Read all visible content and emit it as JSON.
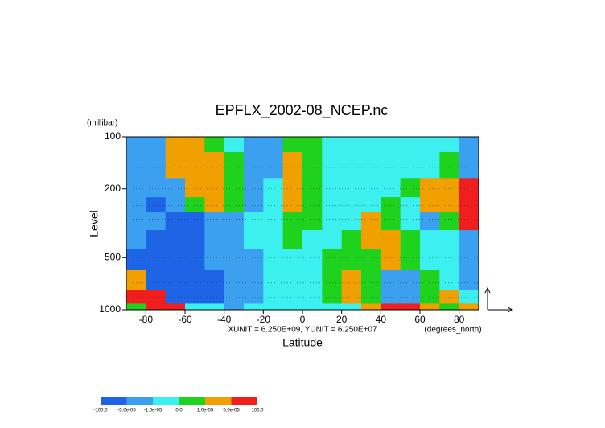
{
  "chart_data": {
    "type": "contour",
    "title": "EPFLX_2002-08_NCEP.nc",
    "y_unit_label": "(millibar)",
    "y_label": "Level",
    "x_label": "Latitude",
    "x_unit_label": "(degrees_north)",
    "annotation": "XUNIT = 6.250E+09, YUNIT = 6.250E+07",
    "xlim": [
      -90,
      90
    ],
    "xticks": [
      -80,
      -60,
      -40,
      -20,
      0,
      20,
      40,
      60,
      80
    ],
    "ylim": [
      1000,
      100
    ],
    "yticks": [
      100,
      200,
      500,
      1000
    ],
    "log_y": true,
    "x": [
      -85,
      -75,
      -65,
      -55,
      -45,
      -35,
      -25,
      -15,
      -5,
      5,
      15,
      25,
      35,
      45,
      55,
      65,
      75,
      85
    ],
    "y": [
      100,
      150,
      200,
      250,
      300,
      400,
      500,
      700,
      850,
      1000
    ],
    "z": [
      [
        -3e-05,
        -3e-05,
        3e-05,
        3e-05,
        5e-06,
        -5e-06,
        -3e-05,
        -3e-05,
        5e-06,
        5e-06,
        -5e-06,
        -5e-06,
        -5e-06,
        -5e-06,
        -5e-06,
        -5e-06,
        -5e-06,
        -3e-05
      ],
      [
        -3e-05,
        -3e-05,
        3e-05,
        3e-05,
        3e-05,
        5e-06,
        -3e-05,
        -3e-05,
        3e-05,
        5e-06,
        -5e-06,
        -5e-06,
        -5e-06,
        -5e-06,
        -5e-06,
        -5e-06,
        5e-06,
        -3e-05
      ],
      [
        -3e-05,
        -3e-05,
        -3e-05,
        3e-05,
        3e-05,
        5e-06,
        -3e-05,
        -5e-06,
        3e-05,
        5e-06,
        -5e-06,
        -5e-06,
        -5e-06,
        -5e-06,
        5e-06,
        3e-05,
        3e-05,
        0.0001
      ],
      [
        -3e-05,
        -0.0001,
        -3e-05,
        5e-06,
        3e-05,
        5e-06,
        -3e-05,
        -5e-06,
        3e-05,
        5e-06,
        -5e-06,
        -5e-06,
        -5e-06,
        5e-06,
        -5e-06,
        3e-05,
        3e-05,
        0.0001
      ],
      [
        -3e-05,
        -3e-05,
        -0.0001,
        -0.0001,
        -3e-05,
        -3e-05,
        -5e-06,
        -5e-06,
        5e-06,
        5e-06,
        -5e-06,
        -5e-06,
        3e-05,
        5e-06,
        -5e-06,
        -3e-05,
        5e-06,
        0.0001
      ],
      [
        -3e-05,
        -0.0001,
        -0.0001,
        -0.0001,
        -3e-05,
        -3e-05,
        -5e-06,
        -5e-06,
        5e-06,
        -5e-06,
        -5e-06,
        5e-06,
        3e-05,
        3e-05,
        5e-06,
        -5e-06,
        -5e-06,
        -3e-05
      ],
      [
        -0.0001,
        -0.0001,
        -0.0001,
        -0.0001,
        -3e-05,
        -3e-05,
        -3e-05,
        -5e-06,
        -5e-06,
        -5e-06,
        5e-06,
        5e-06,
        5e-06,
        3e-05,
        5e-06,
        -5e-06,
        -5e-06,
        -3e-05
      ],
      [
        3e-05,
        -0.0001,
        -0.0001,
        -0.0001,
        -0.0001,
        -3e-05,
        -3e-05,
        -5e-06,
        -5e-06,
        -5e-06,
        5e-06,
        3e-05,
        5e-06,
        -3e-05,
        -3e-05,
        5e-06,
        -5e-06,
        -3e-05
      ],
      [
        0.0001,
        0.0001,
        -0.0001,
        -0.0001,
        -0.0001,
        -3e-05,
        -3e-05,
        -5e-06,
        -5e-06,
        -5e-06,
        5e-06,
        3e-05,
        5e-06,
        -3e-05,
        -3e-05,
        5e-06,
        3e-05,
        -5e-06
      ],
      [
        5e-06,
        0.0001,
        0.0001,
        -5e-06,
        -5e-06,
        -3e-05,
        -5e-06,
        -5e-06,
        -5e-06,
        -5e-06,
        -5e-06,
        -5e-06,
        3e-05,
        0.0001,
        0.0001,
        3e-05,
        5e-06,
        3e-05
      ]
    ],
    "levels": [
      {
        "value": -100,
        "label": "-100.0"
      },
      {
        "value": -5e-05,
        "label": "-5.0e-05"
      },
      {
        "value": -1e-05,
        "label": "-1.0e-05"
      },
      {
        "value": 0,
        "label": "0.0"
      },
      {
        "value": 1e-05,
        "label": "1.0e-05"
      },
      {
        "value": 5e-05,
        "label": "5.0e-05"
      },
      {
        "value": 100,
        "label": "100.0"
      }
    ],
    "colors": [
      "#1e64e6",
      "#3ca0f0",
      "#3cf0f0",
      "#1ed21e",
      "#f0a000",
      "#f01e1e"
    ]
  }
}
